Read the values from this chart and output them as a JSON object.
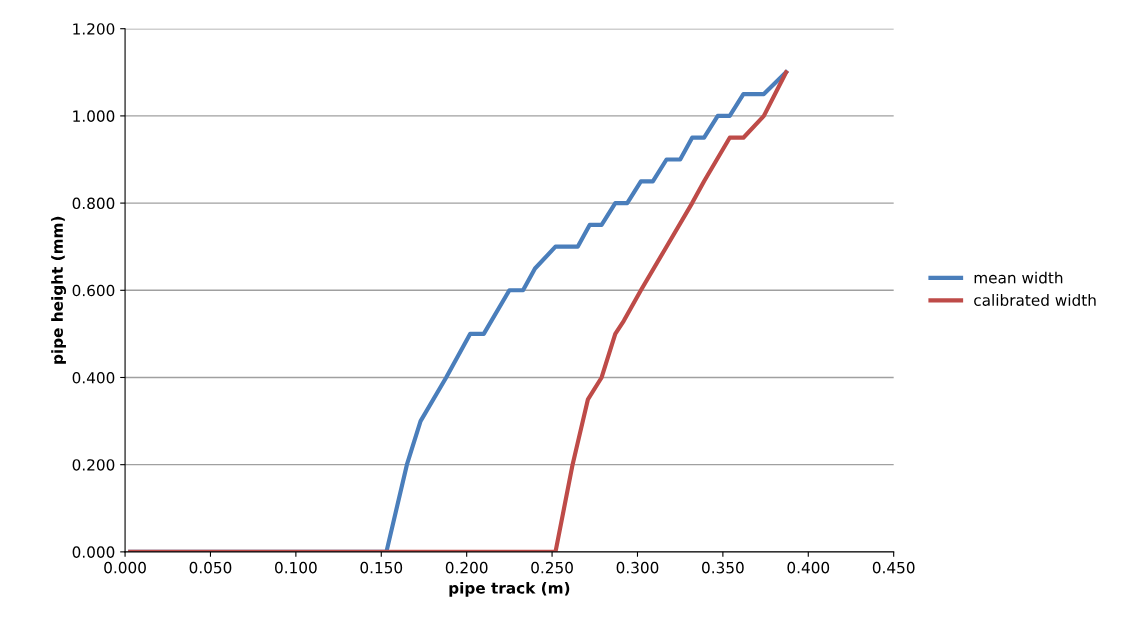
{
  "chart_data": {
    "type": "line",
    "xlabel": "pipe track (m)",
    "ylabel": "pipe height (mm)",
    "xlim": [
      0,
      0.45
    ],
    "xticks": [
      {
        "value": 0,
        "label": "0.000"
      },
      {
        "value": 0.05,
        "label": "0.050"
      },
      {
        "value": 0.1,
        "label": "0.100"
      },
      {
        "value": 0.15,
        "label": "0.150"
      },
      {
        "value": 0.2,
        "label": "0.200"
      },
      {
        "value": 0.25,
        "label": "0.250"
      },
      {
        "value": 0.3,
        "label": "0.300"
      },
      {
        "value": 0.35,
        "label": "0.350"
      },
      {
        "value": 0.4,
        "label": "0.400"
      },
      {
        "value": 0.45,
        "label": "0.450"
      }
    ],
    "ylim": [
      0,
      1.2
    ],
    "yticks": [
      {
        "value": 0,
        "label": "0.000"
      },
      {
        "value": 0.2,
        "label": "0.200"
      },
      {
        "value": 0.4,
        "label": "0.400"
      },
      {
        "value": 0.6,
        "label": "0.600"
      },
      {
        "value": 0.8,
        "label": "0.800"
      },
      {
        "value": 1.0,
        "label": "1.000"
      },
      {
        "value": 1.2,
        "label": "1.200"
      }
    ],
    "grid": "y",
    "legend": "right",
    "marker": "none",
    "line_style": "solid",
    "series": [
      {
        "name": "mean width",
        "color": "#4a7ebb",
        "x": [
          0.003,
          0.153,
          0.165,
          0.173,
          0.188,
          0.202,
          0.21,
          0.225,
          0.233,
          0.24,
          0.252,
          0.265,
          0.272,
          0.279,
          0.287,
          0.294,
          0.302,
          0.309,
          0.317,
          0.325,
          0.332,
          0.339,
          0.347,
          0.354,
          0.362,
          0.374,
          0.387
        ],
        "values": [
          0,
          0,
          0.2,
          0.3,
          0.4,
          0.5,
          0.5,
          0.6,
          0.6,
          0.65,
          0.7,
          0.7,
          0.75,
          0.75,
          0.8,
          0.8,
          0.85,
          0.85,
          0.9,
          0.9,
          0.95,
          0.95,
          1.0,
          1.0,
          1.05,
          1.05,
          1.1
        ]
      },
      {
        "name": "calibrated width",
        "color": "#be4b48",
        "x": [
          0.003,
          0.252,
          0.262,
          0.265,
          0.271,
          0.279,
          0.287,
          0.292,
          0.302,
          0.317,
          0.332,
          0.339,
          0.354,
          0.362,
          0.374,
          0.387
        ],
        "values": [
          0,
          0,
          0.2,
          0.25,
          0.35,
          0.4,
          0.5,
          0.53,
          0.6,
          0.7,
          0.8,
          0.85,
          0.95,
          0.95,
          1.0,
          1.1
        ]
      }
    ]
  }
}
